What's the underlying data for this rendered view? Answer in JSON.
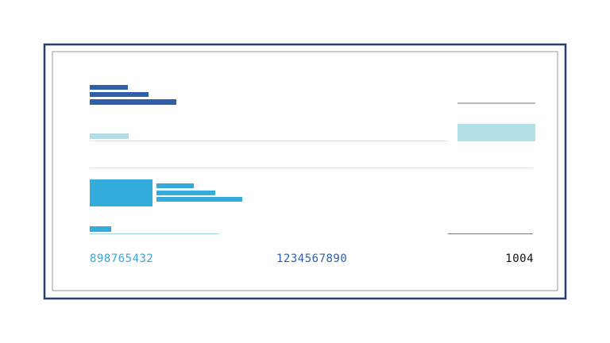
{
  "check": {
    "routing_number": "898765432",
    "account_number": "1234567890",
    "check_number": "1004"
  }
}
